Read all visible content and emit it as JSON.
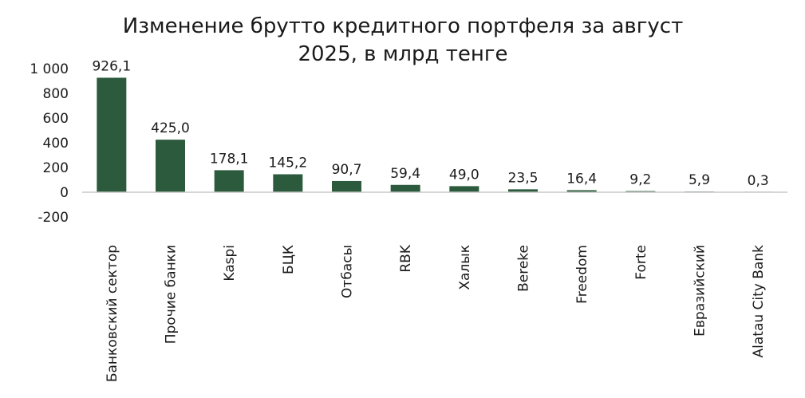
{
  "chart_data": {
    "type": "bar",
    "title_lines": [
      "Изменение брутто кредитного портфеля за август",
      "2025, в млрд тенге"
    ],
    "categories": [
      "Банковский сектор",
      "Прочие банки",
      "Kaspi",
      "БЦК",
      "Отбасы",
      "RBK",
      "Халык",
      "Bereke",
      "Freedom",
      "Forte",
      "Евразийский",
      "Alatau City Bank"
    ],
    "values": [
      926.1,
      425.0,
      178.1,
      145.2,
      90.7,
      59.4,
      49.0,
      23.5,
      16.4,
      9.2,
      5.9,
      0.3
    ],
    "value_labels": [
      "926,1",
      "425,0",
      "178,1",
      "145,2",
      "90,7",
      "59,4",
      "49,0",
      "23,5",
      "16,4",
      "9,2",
      "5,9",
      "0,3"
    ],
    "yticks": [
      1000,
      800,
      600,
      400,
      200,
      0,
      -200
    ],
    "ytick_labels": [
      "1 000",
      "800",
      "600",
      "400",
      "200",
      "0",
      "-200"
    ],
    "ylim": [
      -200,
      1000
    ],
    "bar_color": "#2b5a3c",
    "axis_color": "#c8c8c8",
    "grid": false,
    "legend": "none"
  }
}
